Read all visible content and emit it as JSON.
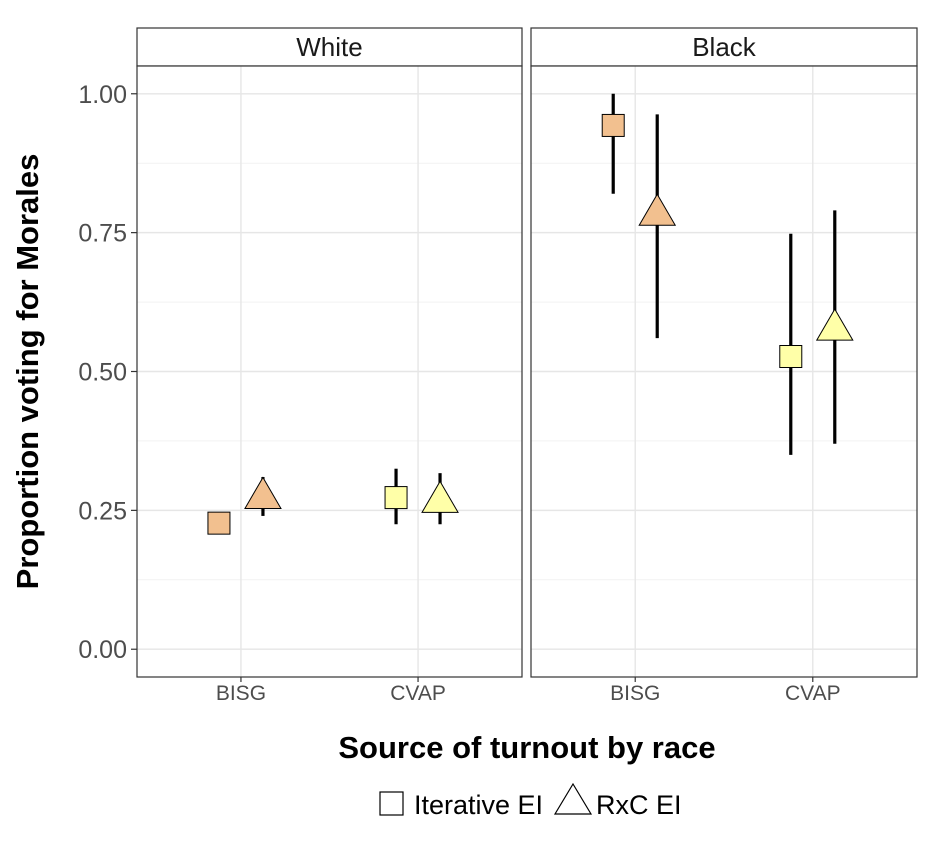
{
  "chart_data": {
    "type": "scatter",
    "ylabel": "Proportion voting for Morales",
    "xlabel": "Source of turnout by race",
    "categories": [
      "BISG",
      "CVAP"
    ],
    "ylim": [
      -0.05,
      1.05
    ],
    "yticks": [
      0.0,
      0.25,
      0.5,
      0.75,
      1.0
    ],
    "ytick_labels": [
      "0.00",
      "0.25",
      "0.50",
      "0.75",
      "1.00"
    ],
    "grid": true,
    "legend_position": "bottom",
    "legend": [
      {
        "label": "Iterative EI",
        "shape": "square"
      },
      {
        "label": "RxC EI",
        "shape": "triangle"
      }
    ],
    "fill_colors": {
      "BISG": "#f2c08f",
      "CVAP": "#ffffa8"
    },
    "error_bar_color": "#000000",
    "panels": [
      {
        "title": "White",
        "points": [
          {
            "category": "BISG",
            "method": "Iterative EI",
            "y": 0.227,
            "lo": null,
            "hi": null
          },
          {
            "category": "BISG",
            "method": "RxC EI",
            "y": 0.275,
            "lo": 0.24,
            "hi": 0.31
          },
          {
            "category": "CVAP",
            "method": "Iterative EI",
            "y": 0.273,
            "lo": 0.225,
            "hi": 0.325
          },
          {
            "category": "CVAP",
            "method": "RxC EI",
            "y": 0.268,
            "lo": 0.225,
            "hi": 0.317
          }
        ]
      },
      {
        "title": "Black",
        "points": [
          {
            "category": "BISG",
            "method": "Iterative EI",
            "y": 0.943,
            "lo": 0.82,
            "hi": 1.0
          },
          {
            "category": "BISG",
            "method": "RxC EI",
            "y": 0.785,
            "lo": 0.56,
            "hi": 0.963
          },
          {
            "category": "CVAP",
            "method": "Iterative EI",
            "y": 0.527,
            "lo": 0.35,
            "hi": 0.748
          },
          {
            "category": "CVAP",
            "method": "RxC EI",
            "y": 0.578,
            "lo": 0.37,
            "hi": 0.79
          }
        ]
      }
    ]
  }
}
